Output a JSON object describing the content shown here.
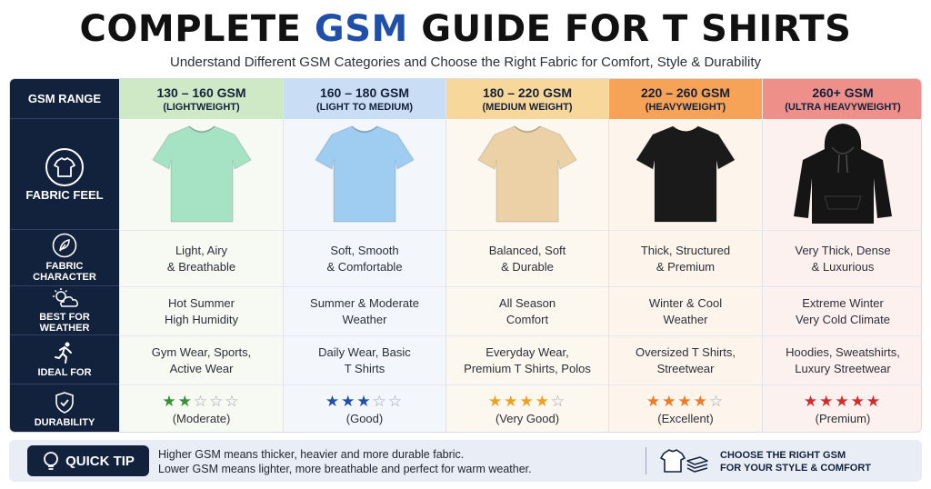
{
  "header": {
    "title_prefix": "COMPLETE ",
    "title_accent": "GSM",
    "title_suffix": " GUIDE FOR T SHIRTS",
    "subtitle": "Understand Different GSM Categories and Choose the Right Fabric for Comfort, Style & Durability"
  },
  "labels": {
    "gsm_range": "GSM RANGE",
    "fabric_feel": "FABRIC FEEL",
    "fabric_character": [
      "FABRIC",
      "CHARACTER"
    ],
    "best_for_weather": [
      "BEST FOR",
      "WEATHER"
    ],
    "ideal_for": "IDEAL FOR",
    "durability": "DURABILITY"
  },
  "columns": [
    {
      "gsm": "130 – 160 GSM",
      "weight": "(LIGHTWEIGHT)",
      "head_color": "#cfe8c6",
      "body_color": "#f6faf3",
      "shirt_color": "#a6e3c4",
      "shirt_icon": "tshirt-icon",
      "character": [
        "Light, Airy",
        "& Breathable"
      ],
      "weather": [
        "Hot Summer",
        "High Humidity"
      ],
      "ideal": [
        "Gym Wear, Sports,",
        "Active Wear"
      ],
      "stars": 2,
      "star_color": "#3b8f3b",
      "rating": "(Moderate)"
    },
    {
      "gsm": "160 – 180 GSM",
      "weight": "(LIGHT TO MEDIUM)",
      "head_color": "#c9def4",
      "body_color": "#f3f7fc",
      "shirt_color": "#9fcdf2",
      "shirt_icon": "tshirt-icon",
      "character": [
        "Soft, Smooth",
        "& Comfortable"
      ],
      "weather": [
        "Summer & Moderate",
        "Weather"
      ],
      "ideal": [
        "Daily Wear, Basic",
        "T Shirts"
      ],
      "stars": 3,
      "star_color": "#1f4fa8",
      "rating": "(Good)"
    },
    {
      "gsm": "180 – 220 GSM",
      "weight": "(MEDIUM WEIGHT)",
      "head_color": "#f8d79a",
      "body_color": "#fdf8ef",
      "shirt_color": "#ecd1a6",
      "shirt_icon": "tshirt-icon",
      "character": [
        "Balanced, Soft",
        "& Durable"
      ],
      "weather": [
        "All Season",
        "Comfort"
      ],
      "ideal": [
        "Everyday Wear,",
        "Premium T Shirts, Polos"
      ],
      "stars": 4,
      "star_color": "#f0a020",
      "rating": "(Very Good)"
    },
    {
      "gsm": "220 – 260 GSM",
      "weight": "(HEAVYWEIGHT)",
      "head_color": "#f6a257",
      "body_color": "#fdf4ec",
      "shirt_color": "#1a1a1a",
      "shirt_icon": "tshirt-icon",
      "character": [
        "Thick, Structured",
        "& Premium"
      ],
      "weather": [
        "Winter & Cool",
        "Weather"
      ],
      "ideal": [
        "Oversized T Shirts,",
        "Streetwear"
      ],
      "stars": 4,
      "star_color": "#ef7a22",
      "rating": "(Excellent)"
    },
    {
      "gsm": "260+ GSM",
      "weight": "(ULTRA HEAVYWEIGHT)",
      "head_color": "#ee8f8a",
      "body_color": "#fdf1f0",
      "shirt_color": "#151515",
      "shirt_icon": "hoodie-icon",
      "character": [
        "Very Thick, Dense",
        "& Luxurious"
      ],
      "weather": [
        "Extreme Winter",
        "Very Cold Climate"
      ],
      "ideal": [
        "Hoodies, Sweatshirts,",
        "Luxury Streetwear"
      ],
      "stars": 5,
      "star_color": "#d42a2a",
      "rating": "(Premium)"
    }
  ],
  "tip": {
    "button": "QUICK TIP",
    "line1": "Higher GSM means thicker, heavier and more durable fabric.",
    "line2": "Lower GSM means lighter, more breathable and perfect for warm weather.",
    "right_line1": "CHOOSE THE RIGHT GSM",
    "right_line2": "FOR YOUR STYLE & COMFORT"
  }
}
